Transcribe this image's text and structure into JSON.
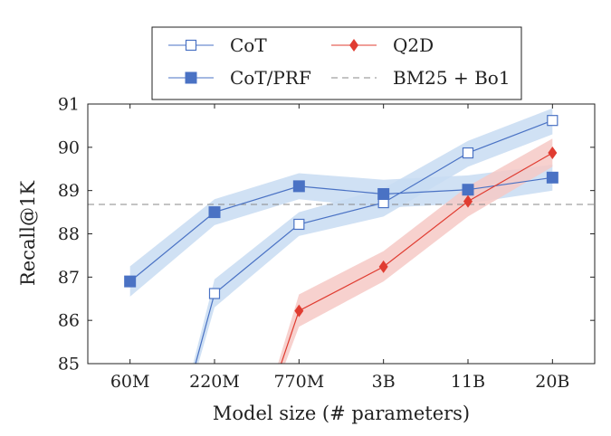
{
  "chart_data": {
    "type": "line",
    "title": "",
    "xlabel": "Model size (# parameters)",
    "ylabel": "Recall@1K",
    "categories": [
      "60M",
      "220M",
      "770M",
      "3B",
      "11B",
      "20B"
    ],
    "ylim": [
      85,
      91
    ],
    "yticks": [
      85,
      86,
      87,
      88,
      89,
      90,
      91
    ],
    "legend_position": "top",
    "series": [
      {
        "name": "CoT",
        "color": "#4a72c4",
        "band_color": "#c8dcf2",
        "marker": "open-square",
        "values": [
          null,
          86.62,
          88.22,
          88.72,
          89.87,
          90.62
        ],
        "lower": [
          null,
          86.3,
          87.95,
          88.4,
          89.55,
          90.3
        ],
        "upper": [
          null,
          86.95,
          88.5,
          89.05,
          90.15,
          90.9
        ],
        "lead_in": {
          "from_x": 0.72,
          "from_y": 84.6,
          "lower": 84.4,
          "upper": 84.8
        }
      },
      {
        "name": "CoT/PRF",
        "color": "#4a72c4",
        "band_color": "#c8dcf2",
        "marker": "filled-square",
        "values": [
          86.9,
          88.5,
          89.1,
          88.92,
          89.02,
          89.3
        ],
        "lower": [
          86.55,
          88.2,
          88.8,
          88.6,
          88.7,
          89.0
        ],
        "upper": [
          87.25,
          88.8,
          89.4,
          89.25,
          89.35,
          89.6
        ]
      },
      {
        "name": "Q2D",
        "color": "#e03c31",
        "band_color": "#f6c9c5",
        "marker": "filled-diamond",
        "values": [
          null,
          null,
          86.22,
          87.24,
          88.75,
          89.87
        ],
        "lower": [
          null,
          null,
          85.85,
          86.9,
          88.4,
          89.55
        ],
        "upper": [
          null,
          null,
          86.6,
          87.6,
          89.1,
          90.2
        ],
        "lead_in": {
          "from_x": 1.72,
          "from_y": 84.6,
          "lower": 84.4,
          "upper": 84.8
        }
      },
      {
        "name": "BM25 + Bo1",
        "color": "#888888",
        "dashed": true,
        "constant": 88.68
      }
    ]
  }
}
